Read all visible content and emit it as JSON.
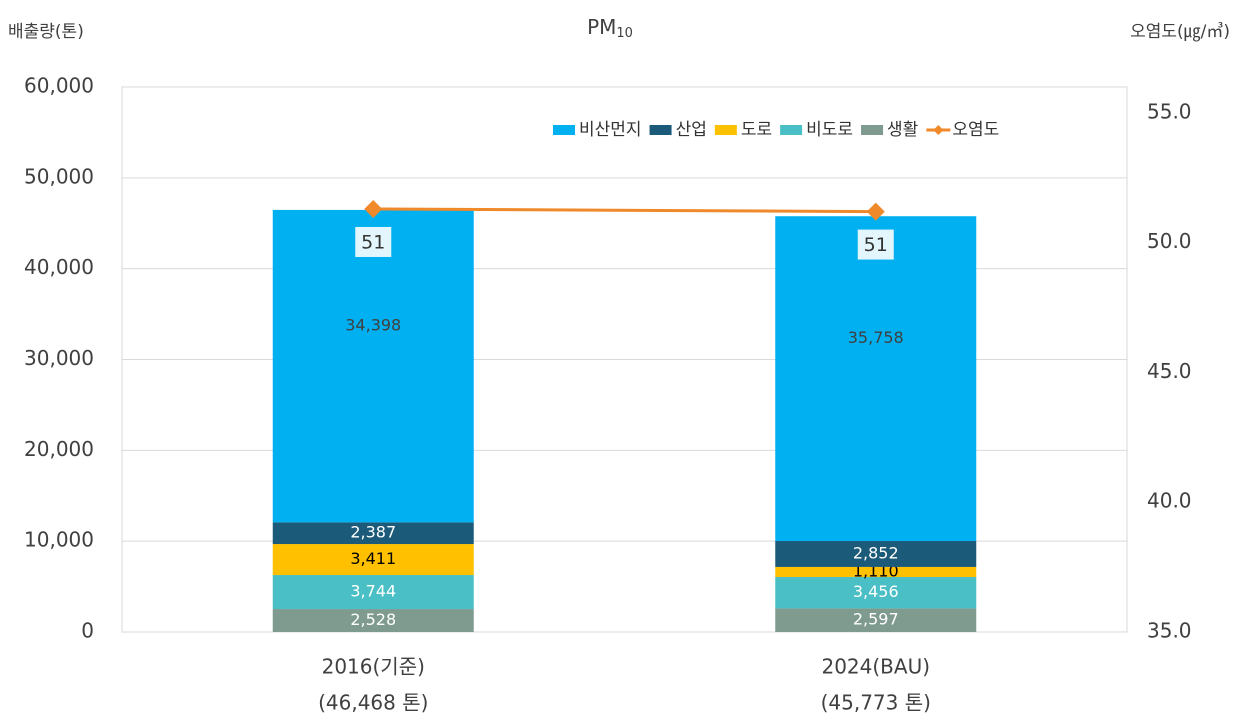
{
  "chart_data": {
    "type": "bar",
    "title": {
      "text": "PM",
      "subscript": "10"
    },
    "y_label": "배출량(톤)",
    "y2_label": "오염도(㎍/㎥)",
    "categories": [
      "2016(기준)",
      "2024(BAU)"
    ],
    "category_sublabels": [
      "(46,468 톤)",
      "(45,773 톤)"
    ],
    "series": [
      {
        "name": "비산먼지",
        "color": "#00b0f0",
        "label_color": "#404040",
        "values": [
          34398,
          35758
        ],
        "value_labels": [
          "34,398",
          "35,758"
        ]
      },
      {
        "name": "산업",
        "color": "#1b5a78",
        "label_color": "#ffffff",
        "values": [
          2387,
          2852
        ],
        "value_labels": [
          "2,387",
          "2,852"
        ]
      },
      {
        "name": "도로",
        "color": "#ffc000",
        "label_color": "#000000",
        "values": [
          3411,
          1110
        ],
        "value_labels": [
          "3,411",
          "1,110"
        ]
      },
      {
        "name": "비도로",
        "color": "#4bbfc6",
        "label_color": "#ffffff",
        "values": [
          3744,
          3456
        ],
        "value_labels": [
          "3,744",
          "3,456"
        ]
      },
      {
        "name": "생활",
        "color": "#7f9b90",
        "label_color": "#ffffff",
        "values": [
          2528,
          2597
        ],
        "value_labels": [
          "2,528",
          "2,597"
        ]
      },
      {
        "name": "오염도",
        "type": "line",
        "axis": "y2",
        "color": "#f0892a",
        "values": [
          51.3,
          51.2
        ],
        "value_labels": [
          "51",
          "51"
        ]
      }
    ],
    "ylim": [
      0,
      60000
    ],
    "yticks": [
      0,
      {
        "value": 10000,
        "label": "10,000"
      },
      {
        "value": 20000,
        "label": "20,000"
      },
      {
        "value": 30000,
        "label": "30,000"
      },
      {
        "value": 40000,
        "label": "40,000"
      },
      {
        "value": 50000,
        "label": "50,000"
      },
      {
        "value": 60000,
        "label": "60,000"
      }
    ],
    "y2lim": [
      35,
      56
    ],
    "y2ticks": [
      {
        "value": 35,
        "label": "35.0"
      },
      {
        "value": 40,
        "label": "40.0"
      },
      {
        "value": 45,
        "label": "45.0"
      },
      {
        "value": 50,
        "label": "50.0"
      },
      {
        "value": 55,
        "label": "55.0"
      }
    ],
    "grid": true,
    "legend": "top-right"
  }
}
